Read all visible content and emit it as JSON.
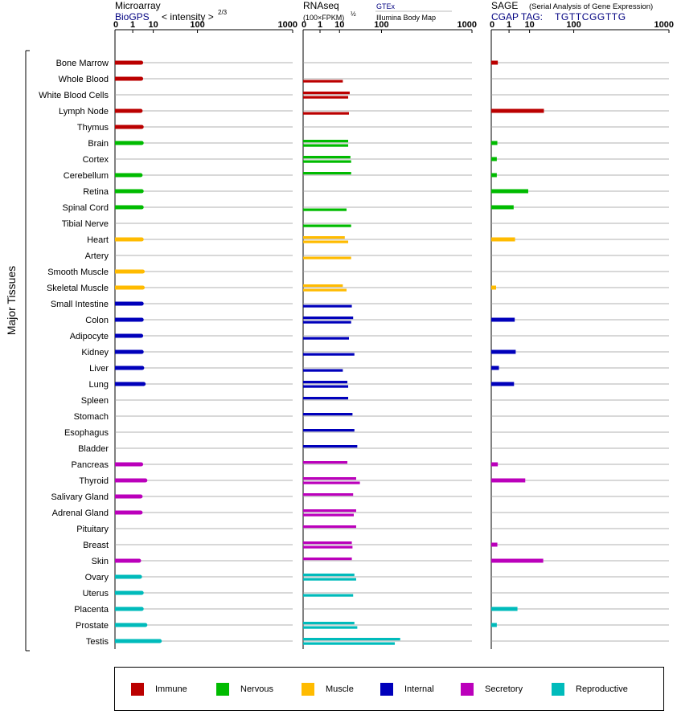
{
  "chart_data": [
    {
      "type": "bar",
      "title": "Microarray",
      "subtitle_link": "BioGPS",
      "subtitle_text": "< intensity >",
      "exponent": "2/3",
      "ylabel": "Major Tissues",
      "x_ticks": [
        "0",
        "1",
        "10",
        "100",
        "1000"
      ],
      "xlim": [
        0,
        1000
      ],
      "categories": [
        "Bone Marrow",
        "Whole Blood",
        "White Blood Cells",
        "Lymph Node",
        "Thymus",
        "Brain",
        "Cortex",
        "Cerebellum",
        "Retina",
        "Spinal Cord",
        "Tibial Nerve",
        "Heart",
        "Artery",
        "Smooth Muscle",
        "Skeletal Muscle",
        "Small Intestine",
        "Colon",
        "Adipocyte",
        "Kidney",
        "Liver",
        "Lung",
        "Spleen",
        "Stomach",
        "Esophagus",
        "Bladder",
        "Pancreas",
        "Thyroid",
        "Salivary Gland",
        "Adrenal Gland",
        "Pituitary",
        "Breast",
        "Skin",
        "Ovary",
        "Uterus",
        "Placenta",
        "Prostate",
        "Testis"
      ],
      "series": [
        {
          "values": [
            3.2,
            3.2,
            null,
            3.0,
            3.4,
            3.4,
            null,
            3.0,
            3.4,
            3.4,
            null,
            3.4,
            null,
            3.8,
            3.8,
            3.4,
            3.4,
            3.2,
            3.4,
            3.6,
            4.2,
            null,
            null,
            null,
            null,
            3.2,
            5.0,
            3.0,
            3.0,
            null,
            null,
            2.5,
            2.8,
            3.4,
            3.4,
            5.0,
            16
          ]
        }
      ]
    },
    {
      "type": "bar",
      "title": "RNAseq",
      "subtitle_text": "(100×FPKM)",
      "exponent": "½",
      "legend_link": "GTEx",
      "legend_text": "Illumina Body Map",
      "x_ticks": [
        "0",
        "1",
        "10",
        "100",
        "1000"
      ],
      "xlim": [
        0,
        1000
      ],
      "series": [
        {
          "name": "GTEx",
          "values": [
            null,
            null,
            21,
            null,
            null,
            19,
            22,
            23,
            null,
            null,
            null,
            15,
            null,
            null,
            13,
            null,
            26,
            null,
            null,
            null,
            18,
            19,
            25,
            28,
            33,
            18,
            31,
            26,
            31,
            31,
            24,
            24,
            28,
            null,
            null,
            28,
            190
          ]
        },
        {
          "name": "Illumina Body Map",
          "values": [
            null,
            13,
            19,
            20,
            null,
            19,
            23,
            null,
            null,
            17,
            23,
            19,
            23,
            null,
            17,
            24,
            23,
            20,
            28,
            13,
            19,
            null,
            null,
            null,
            null,
            null,
            38,
            null,
            27,
            null,
            25,
            null,
            31,
            26,
            null,
            33,
            160
          ]
        }
      ]
    },
    {
      "type": "bar",
      "title": "SAGE",
      "subtitle_text": "(Serial Analysis of Gene Expression)",
      "tag_prefix": "CGAP TAG:",
      "tag_sequence": "TGTTCGGTTG",
      "x_ticks": [
        "0",
        "1",
        "10",
        "100",
        "1000"
      ],
      "xlim": [
        0,
        1000
      ],
      "series": [
        {
          "values": [
            0.05,
            null,
            null,
            26,
            null,
            0.04,
            0.03,
            0.03,
            9,
            2.0,
            null,
            2.4,
            null,
            null,
            0.02,
            null,
            2.3,
            null,
            2.6,
            0.08,
            2.1,
            null,
            null,
            null,
            null,
            0.05,
            7,
            null,
            null,
            null,
            0.04,
            25,
            null,
            null,
            3.2,
            0.03,
            null
          ]
        }
      ]
    }
  ],
  "legend": [
    {
      "label": "Immune",
      "color": "#bb0000"
    },
    {
      "label": "Nervous",
      "color": "#00bb00"
    },
    {
      "label": "Muscle",
      "color": "#ffbb00"
    },
    {
      "label": "Internal",
      "color": "#0000bb"
    },
    {
      "label": "Secretory",
      "color": "#bb00bb"
    },
    {
      "label": "Reproductive",
      "color": "#00bbbb"
    }
  ],
  "tissue_groups": [
    "Immune",
    "Immune",
    "Immune",
    "Immune",
    "Immune",
    "Nervous",
    "Nervous",
    "Nervous",
    "Nervous",
    "Nervous",
    "Nervous",
    "Muscle",
    "Muscle",
    "Muscle",
    "Muscle",
    "Internal",
    "Internal",
    "Internal",
    "Internal",
    "Internal",
    "Internal",
    "Internal",
    "Internal",
    "Internal",
    "Internal",
    "Secretory",
    "Secretory",
    "Secretory",
    "Secretory",
    "Secretory",
    "Secretory",
    "Secretory",
    "Reproductive",
    "Reproductive",
    "Reproductive",
    "Reproductive",
    "Reproductive"
  ],
  "colors": {
    "link_blue": "#000080",
    "gridline": "#999999",
    "axis": "#000000"
  }
}
